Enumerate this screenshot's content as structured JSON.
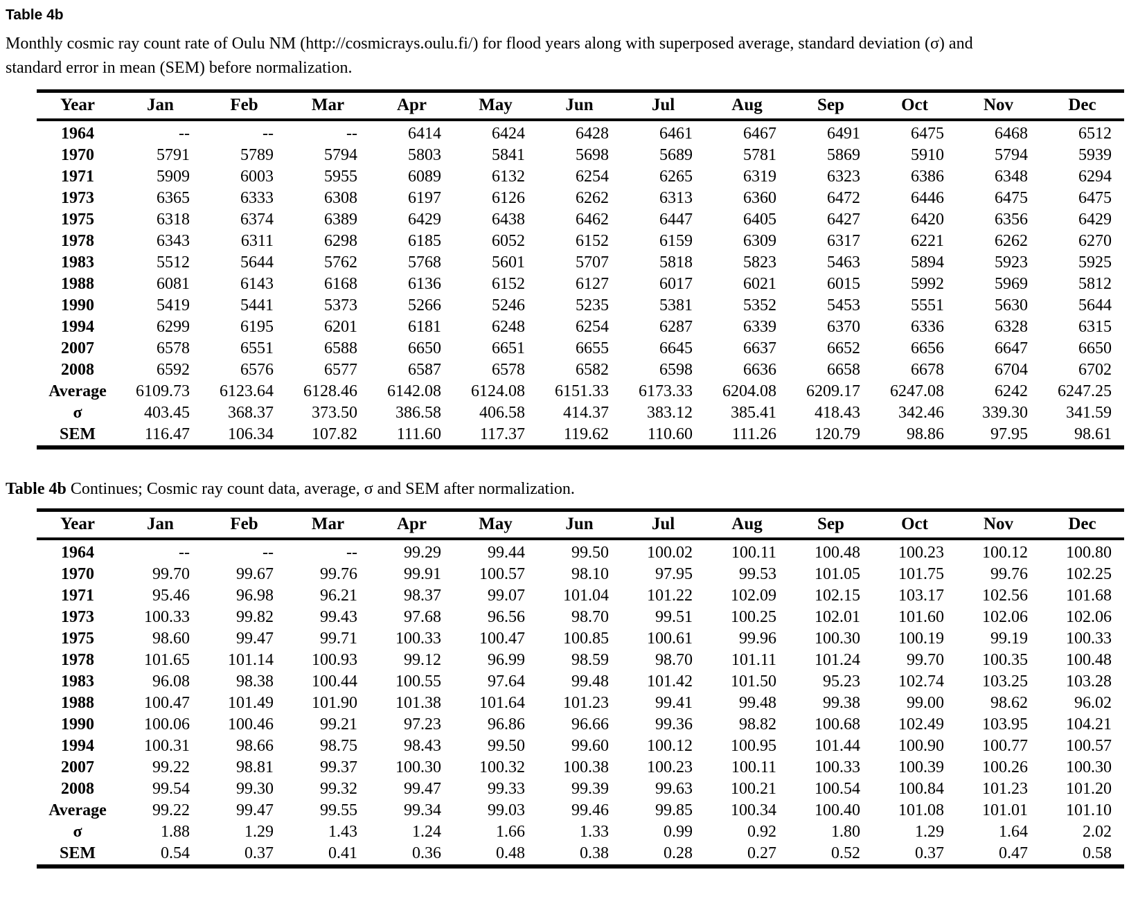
{
  "title": "Table 4b",
  "caption1": {
    "line1": "Monthly cosmic ray count rate of Oulu NM (http://cosmicrays.oulu.fi/) for flood years along with superposed average, standard deviation (σ) and",
    "line2": "standard error in mean (SEM) before normalization."
  },
  "caption2": {
    "bold": "Table 4b",
    "rest": " Continues; Cosmic ray count data, average, σ and SEM after normalization."
  },
  "tables": [
    {
      "name": "cosmic-ray-counts-before-normalization",
      "columns": [
        "Year",
        "Jan",
        "Feb",
        "Mar",
        "Apr",
        "May",
        "Jun",
        "Jul",
        "Aug",
        "Sep",
        "Oct",
        "Nov",
        "Dec"
      ],
      "rows": [
        {
          "label": "1964",
          "values": [
            "--",
            "--",
            "--",
            "6414",
            "6424",
            "6428",
            "6461",
            "6467",
            "6491",
            "6475",
            "6468",
            "6512"
          ]
        },
        {
          "label": "1970",
          "values": [
            "5791",
            "5789",
            "5794",
            "5803",
            "5841",
            "5698",
            "5689",
            "5781",
            "5869",
            "5910",
            "5794",
            "5939"
          ]
        },
        {
          "label": "1971",
          "values": [
            "5909",
            "6003",
            "5955",
            "6089",
            "6132",
            "6254",
            "6265",
            "6319",
            "6323",
            "6386",
            "6348",
            "6294"
          ]
        },
        {
          "label": "1973",
          "values": [
            "6365",
            "6333",
            "6308",
            "6197",
            "6126",
            "6262",
            "6313",
            "6360",
            "6472",
            "6446",
            "6475",
            "6475"
          ]
        },
        {
          "label": "1975",
          "values": [
            "6318",
            "6374",
            "6389",
            "6429",
            "6438",
            "6462",
            "6447",
            "6405",
            "6427",
            "6420",
            "6356",
            "6429"
          ]
        },
        {
          "label": "1978",
          "values": [
            "6343",
            "6311",
            "6298",
            "6185",
            "6052",
            "6152",
            "6159",
            "6309",
            "6317",
            "6221",
            "6262",
            "6270"
          ]
        },
        {
          "label": "1983",
          "values": [
            "5512",
            "5644",
            "5762",
            "5768",
            "5601",
            "5707",
            "5818",
            "5823",
            "5463",
            "5894",
            "5923",
            "5925"
          ]
        },
        {
          "label": "1988",
          "values": [
            "6081",
            "6143",
            "6168",
            "6136",
            "6152",
            "6127",
            "6017",
            "6021",
            "6015",
            "5992",
            "5969",
            "5812"
          ]
        },
        {
          "label": "1990",
          "values": [
            "5419",
            "5441",
            "5373",
            "5266",
            "5246",
            "5235",
            "5381",
            "5352",
            "5453",
            "5551",
            "5630",
            "5644"
          ]
        },
        {
          "label": "1994",
          "values": [
            "6299",
            "6195",
            "6201",
            "6181",
            "6248",
            "6254",
            "6287",
            "6339",
            "6370",
            "6336",
            "6328",
            "6315"
          ]
        },
        {
          "label": "2007",
          "values": [
            "6578",
            "6551",
            "6588",
            "6650",
            "6651",
            "6655",
            "6645",
            "6637",
            "6652",
            "6656",
            "6647",
            "6650"
          ]
        },
        {
          "label": "2008",
          "values": [
            "6592",
            "6576",
            "6577",
            "6587",
            "6578",
            "6582",
            "6598",
            "6636",
            "6658",
            "6678",
            "6704",
            "6702"
          ]
        },
        {
          "label": "Average",
          "values": [
            "6109.73",
            "6123.64",
            "6128.46",
            "6142.08",
            "6124.08",
            "6151.33",
            "6173.33",
            "6204.08",
            "6209.17",
            "6247.08",
            "6242",
            "6247.25"
          ]
        },
        {
          "label": "σ",
          "values": [
            "403.45",
            "368.37",
            "373.50",
            "386.58",
            "406.58",
            "414.37",
            "383.12",
            "385.41",
            "418.43",
            "342.46",
            "339.30",
            "341.59"
          ]
        },
        {
          "label": "SEM",
          "values": [
            "116.47",
            "106.34",
            "107.82",
            "111.60",
            "117.37",
            "119.62",
            "110.60",
            "111.26",
            "120.79",
            "98.86",
            "97.95",
            "98.61"
          ]
        }
      ]
    },
    {
      "name": "cosmic-ray-counts-after-normalization",
      "columns": [
        "Year",
        "Jan",
        "Feb",
        "Mar",
        "Apr",
        "May",
        "Jun",
        "Jul",
        "Aug",
        "Sep",
        "Oct",
        "Nov",
        "Dec"
      ],
      "rows": [
        {
          "label": "1964",
          "values": [
            "--",
            "--",
            "--",
            "99.29",
            "99.44",
            "99.50",
            "100.02",
            "100.11",
            "100.48",
            "100.23",
            "100.12",
            "100.80"
          ]
        },
        {
          "label": "1970",
          "values": [
            "99.70",
            "99.67",
            "99.76",
            "99.91",
            "100.57",
            "98.10",
            "97.95",
            "99.53",
            "101.05",
            "101.75",
            "99.76",
            "102.25"
          ]
        },
        {
          "label": "1971",
          "values": [
            "95.46",
            "96.98",
            "96.21",
            "98.37",
            "99.07",
            "101.04",
            "101.22",
            "102.09",
            "102.15",
            "103.17",
            "102.56",
            "101.68"
          ]
        },
        {
          "label": "1973",
          "values": [
            "100.33",
            "99.82",
            "99.43",
            "97.68",
            "96.56",
            "98.70",
            "99.51",
            "100.25",
            "102.01",
            "101.60",
            "102.06",
            "102.06"
          ]
        },
        {
          "label": "1975",
          "values": [
            "98.60",
            "99.47",
            "99.71",
            "100.33",
            "100.47",
            "100.85",
            "100.61",
            "99.96",
            "100.30",
            "100.19",
            "99.19",
            "100.33"
          ]
        },
        {
          "label": "1978",
          "values": [
            "101.65",
            "101.14",
            "100.93",
            "99.12",
            "96.99",
            "98.59",
            "98.70",
            "101.11",
            "101.24",
            "99.70",
            "100.35",
            "100.48"
          ]
        },
        {
          "label": "1983",
          "values": [
            "96.08",
            "98.38",
            "100.44",
            "100.55",
            "97.64",
            "99.48",
            "101.42",
            "101.50",
            "95.23",
            "102.74",
            "103.25",
            "103.28"
          ]
        },
        {
          "label": "1988",
          "values": [
            "100.47",
            "101.49",
            "101.90",
            "101.38",
            "101.64",
            "101.23",
            "99.41",
            "99.48",
            "99.38",
            "99.00",
            "98.62",
            "96.02"
          ]
        },
        {
          "label": "1990",
          "values": [
            "100.06",
            "100.46",
            "99.21",
            "97.23",
            "96.86",
            "96.66",
            "99.36",
            "98.82",
            "100.68",
            "102.49",
            "103.95",
            "104.21"
          ]
        },
        {
          "label": "1994",
          "values": [
            "100.31",
            "98.66",
            "98.75",
            "98.43",
            "99.50",
            "99.60",
            "100.12",
            "100.95",
            "101.44",
            "100.90",
            "100.77",
            "100.57"
          ]
        },
        {
          "label": "2007",
          "values": [
            "99.22",
            "98.81",
            "99.37",
            "100.30",
            "100.32",
            "100.38",
            "100.23",
            "100.11",
            "100.33",
            "100.39",
            "100.26",
            "100.30"
          ]
        },
        {
          "label": "2008",
          "values": [
            "99.54",
            "99.30",
            "99.32",
            "99.47",
            "99.33",
            "99.39",
            "99.63",
            "100.21",
            "100.54",
            "100.84",
            "101.23",
            "101.20"
          ]
        },
        {
          "label": "Average",
          "values": [
            "99.22",
            "99.47",
            "99.55",
            "99.34",
            "99.03",
            "99.46",
            "99.85",
            "100.34",
            "100.40",
            "101.08",
            "101.01",
            "101.10"
          ]
        },
        {
          "label": "σ",
          "values": [
            "1.88",
            "1.29",
            "1.43",
            "1.24",
            "1.66",
            "1.33",
            "0.99",
            "0.92",
            "1.80",
            "1.29",
            "1.64",
            "2.02"
          ]
        },
        {
          "label": "SEM",
          "values": [
            "0.54",
            "0.37",
            "0.41",
            "0.36",
            "0.48",
            "0.38",
            "0.28",
            "0.27",
            "0.52",
            "0.37",
            "0.47",
            "0.58"
          ]
        }
      ]
    }
  ]
}
